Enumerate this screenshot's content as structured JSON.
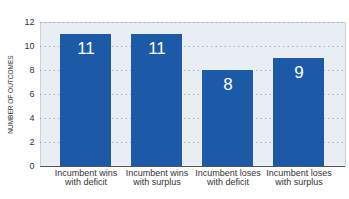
{
  "chart_data": {
    "type": "bar",
    "categories": [
      "Incumbent wins with deficit",
      "Incumbent wins with surplus",
      "Incumbent loses with deficit",
      "Incumbent loses with surplus"
    ],
    "values": [
      11,
      11,
      8,
      9
    ],
    "color": "#1c5aa8",
    "y_label": "NUMBER OF OUTCOMES",
    "ylim": [
      0,
      12
    ],
    "yticks": [
      0,
      2,
      4,
      6,
      8,
      10,
      12
    ],
    "grid": true,
    "data_labels": true
  }
}
